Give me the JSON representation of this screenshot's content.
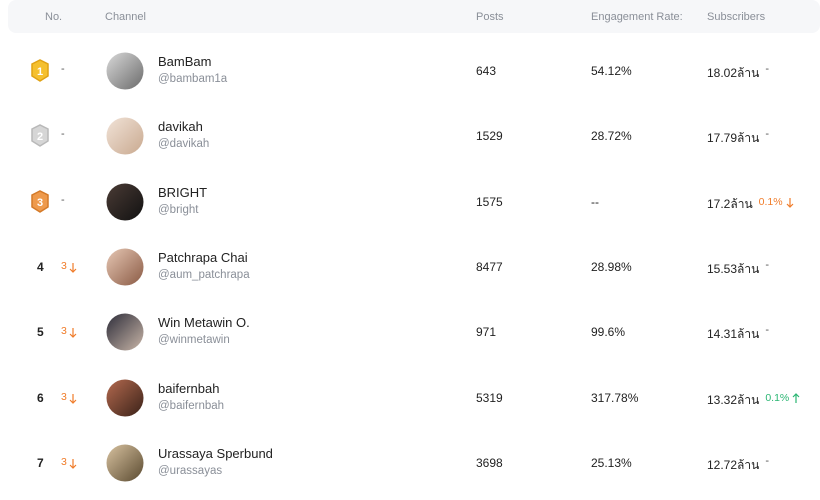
{
  "header": {
    "no": "No.",
    "channel": "Channel",
    "posts": "Posts",
    "engagement": "Engagement Rate:",
    "subscribers": "Subscribers"
  },
  "rows": [
    {
      "rank": "1",
      "medal": "gold",
      "rank_change": "-",
      "name": "BamBam",
      "handle": "@bambam1a",
      "posts": "643",
      "engagement": "54.12%",
      "subscribers": "18.02ล้าน",
      "subscribers_change": "-"
    },
    {
      "rank": "2",
      "medal": "silver",
      "rank_change": "-",
      "name": "davikah",
      "handle": "@davikah",
      "posts": "1529",
      "engagement": "28.72%",
      "subscribers": "17.79ล้าน",
      "subscribers_change": "-"
    },
    {
      "rank": "3",
      "medal": "bronze",
      "rank_change": "-",
      "name": "BRIGHT",
      "handle": "@bright",
      "posts": "1575",
      "engagement": "--",
      "subscribers": "17.2ล้าน",
      "subscribers_change": "0.1%",
      "subscribers_trend": "down"
    },
    {
      "rank": "4",
      "rank_change": "3",
      "rank_trend": "down",
      "name": "Patchrapa Chai",
      "handle": "@aum_patchrapa",
      "posts": "8477",
      "engagement": "28.98%",
      "subscribers": "15.53ล้าน",
      "subscribers_change": "-"
    },
    {
      "rank": "5",
      "rank_change": "3",
      "rank_trend": "down",
      "name": "Win Metawin O.",
      "handle": "@winmetawin",
      "posts": "971",
      "engagement": "99.6%",
      "subscribers": "14.31ล้าน",
      "subscribers_change": "-"
    },
    {
      "rank": "6",
      "rank_change": "3",
      "rank_trend": "down",
      "name": "baifernbah",
      "handle": "@baifernbah",
      "posts": "5319",
      "engagement": "317.78%",
      "subscribers": "13.32ล้าน",
      "subscribers_change": "0.1%",
      "subscribers_trend": "up"
    },
    {
      "rank": "7",
      "rank_change": "3",
      "rank_trend": "down",
      "name": "Urassaya Sperbund",
      "handle": "@urassayas",
      "posts": "3698",
      "engagement": "25.13%",
      "subscribers": "12.72ล้าน",
      "subscribers_change": "-"
    }
  ]
}
